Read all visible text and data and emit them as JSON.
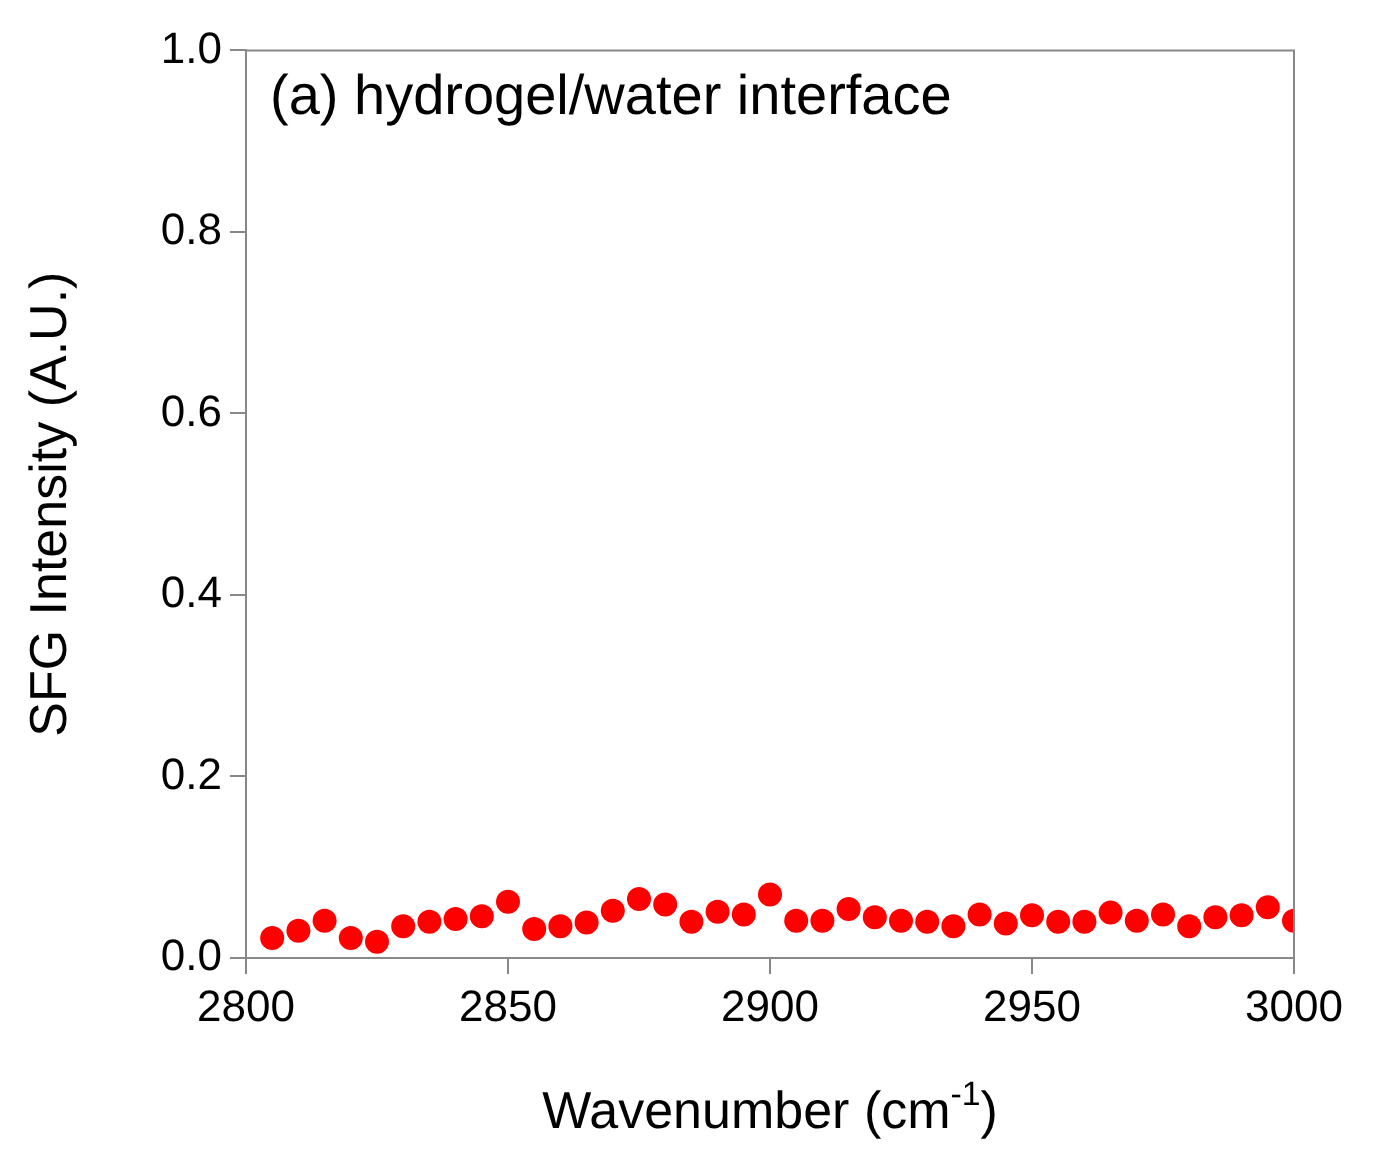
{
  "chart_data": {
    "type": "scatter",
    "xlabel": "Wavenumber (cm$^{-1}$)",
    "ylabel": "SFG Intensity (A.U.)",
    "annotations": [
      "(a) hydrogel/water interface"
    ],
    "marker": "circle",
    "x": [
      2805,
      2810,
      2815,
      2820,
      2825,
      2830,
      2835,
      2840,
      2845,
      2850,
      2855,
      2860,
      2865,
      2870,
      2875,
      2880,
      2885,
      2890,
      2895,
      2900,
      2905,
      2910,
      2915,
      2920,
      2925,
      2930,
      2935,
      2940,
      2945,
      2950,
      2955,
      2960,
      2965,
      2970,
      2975,
      2980,
      2985,
      2990,
      2995,
      3000
    ],
    "series": [
      {
        "color": "#ff0000",
        "values": [
          0.022,
          0.03,
          0.041,
          0.022,
          0.018,
          0.035,
          0.04,
          0.043,
          0.046,
          0.062,
          0.032,
          0.035,
          0.039,
          0.052,
          0.065,
          0.059,
          0.04,
          0.051,
          0.048,
          0.07,
          0.041,
          0.041,
          0.054,
          0.045,
          0.041,
          0.04,
          0.035,
          0.048,
          0.038,
          0.047,
          0.04,
          0.04,
          0.05,
          0.041,
          0.048,
          0.035,
          0.045,
          0.047,
          0.056,
          0.041
        ]
      }
    ],
    "xlim": [
      2800,
      3000
    ],
    "xticks": [
      2800,
      2850,
      2900,
      2950,
      3000
    ],
    "ylim": [
      0,
      1
    ],
    "yticks": [
      {
        "value": 0,
        "label": "0.0"
      },
      {
        "value": 0.2,
        "label": "0.2"
      },
      {
        "value": 0.4,
        "label": "0.4"
      },
      {
        "value": 0.6,
        "label": "0.6"
      },
      {
        "value": 0.8,
        "label": "0.8"
      },
      {
        "value": 1,
        "label": "1.0"
      }
    ]
  }
}
